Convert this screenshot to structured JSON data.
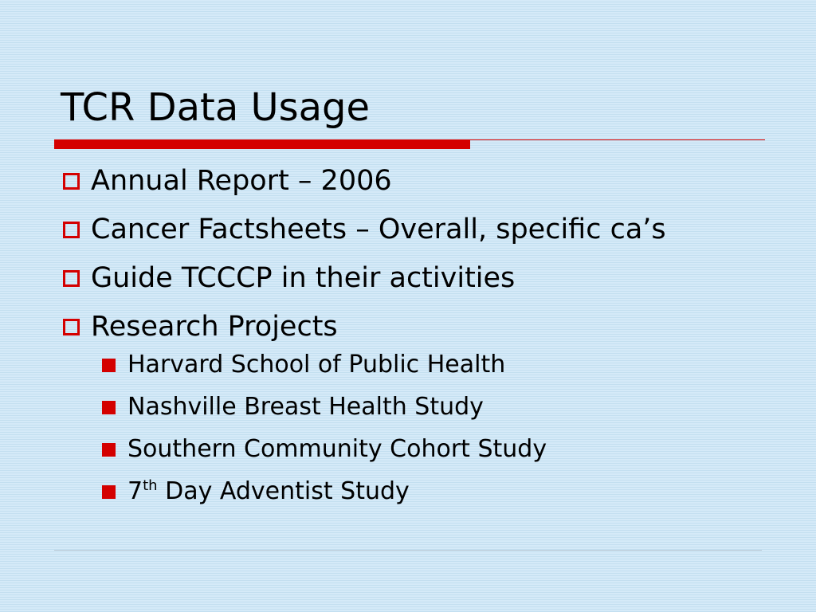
{
  "slide": {
    "title": "TCR Data Usage",
    "accent_color": "#d40000",
    "background_color": "#d2e8f6",
    "bullets": [
      {
        "text": "Annual Report – 2006"
      },
      {
        "text": "Cancer Factsheets – Overall, specific ca’s"
      },
      {
        "text": "Guide TCCCP in their activities"
      },
      {
        "text": "Research Projects",
        "sub_bullets": [
          {
            "text": "Harvard School of Public Health"
          },
          {
            "text": "Nashville Breast Health Study"
          },
          {
            "text": "Southern Community Cohort Study"
          },
          {
            "prefix": "7",
            "superscript": "th",
            "text": " Day Adventist Study"
          }
        ]
      }
    ]
  }
}
